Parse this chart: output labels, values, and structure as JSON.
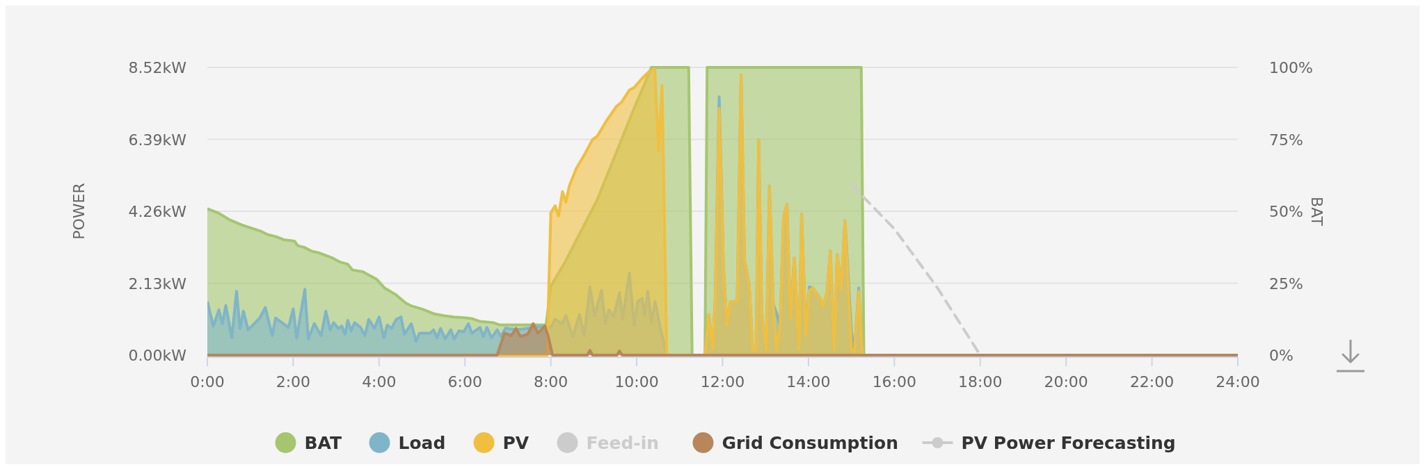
{
  "chart_data": {
    "type": "area",
    "ylabel": "POWER",
    "y2label": "BAT",
    "xlim": [
      0,
      24
    ],
    "xticks": [
      {
        "value": 0,
        "label": "0:00"
      },
      {
        "value": 2,
        "label": "2:00"
      },
      {
        "value": 4,
        "label": "4:00"
      },
      {
        "value": 6,
        "label": "6:00"
      },
      {
        "value": 8,
        "label": "8:00"
      },
      {
        "value": 10,
        "label": "10:00"
      },
      {
        "value": 12,
        "label": "12:00"
      },
      {
        "value": 14,
        "label": "14:00"
      },
      {
        "value": 16,
        "label": "16:00"
      },
      {
        "value": 18,
        "label": "18:00"
      },
      {
        "value": 20,
        "label": "20:00"
      },
      {
        "value": 22,
        "label": "22:00"
      },
      {
        "value": 24,
        "label": "24:00"
      }
    ],
    "ylim": [
      0,
      8.52
    ],
    "yticks": [
      {
        "value": 0,
        "label": "0.00kW"
      },
      {
        "value": 2.13,
        "label": "2.13kW"
      },
      {
        "value": 4.26,
        "label": "4.26kW"
      },
      {
        "value": 6.39,
        "label": "6.39kW"
      },
      {
        "value": 8.52,
        "label": "8.52kW"
      }
    ],
    "y2lim": [
      0,
      100
    ],
    "y2ticks": [
      {
        "value": 0,
        "label": "0%"
      },
      {
        "value": 25,
        "label": "25%"
      },
      {
        "value": 50,
        "label": "50%"
      },
      {
        "value": 75,
        "label": "75%"
      },
      {
        "value": 100,
        "label": "100%"
      }
    ],
    "grid": "y",
    "legend": "bottom",
    "series": [
      {
        "name": "BAT",
        "axis": "y2",
        "color": "#a5c66f",
        "x": [
          0,
          0.27,
          0.51,
          0.81,
          0.97,
          1.24,
          1.4,
          1.59,
          1.78,
          2.03,
          2.11,
          2.27,
          2.43,
          2.59,
          2.92,
          3.08,
          3.27,
          3.38,
          3.62,
          3.94,
          4.13,
          4.38,
          4.62,
          4.75,
          5.02,
          5.29,
          5.51,
          5.75,
          6,
          6.16,
          6.35,
          6.65,
          6.81,
          7.89,
          8,
          8.32,
          8.7,
          9.08,
          9.46,
          9.89,
          10.26,
          10.34,
          11.21,
          11.29,
          11.59,
          11.64,
          15.23,
          15.29
        ],
        "values": [
          50.9,
          49.3,
          47.1,
          45.2,
          44.4,
          43.1,
          41.9,
          41.2,
          40.1,
          39.6,
          38,
          37.4,
          36.1,
          35.6,
          33.7,
          32.4,
          31.6,
          29.6,
          29,
          26.4,
          23.3,
          21.1,
          18.1,
          17.1,
          15.9,
          14.3,
          13.7,
          13.2,
          13,
          12.7,
          11.7,
          11.3,
          10.5,
          10.5,
          24,
          32,
          43,
          54,
          68,
          84,
          97,
          100,
          100,
          0,
          0,
          100,
          100,
          0
        ]
      },
      {
        "name": "Load",
        "color": "#7fb5c8",
        "x": [
          0,
          0.14,
          0.27,
          0.35,
          0.43,
          0.57,
          0.68,
          0.76,
          0.84,
          0.95,
          1.22,
          1.35,
          1.51,
          1.59,
          1.89,
          2,
          2.08,
          2.27,
          2.35,
          2.49,
          2.65,
          2.76,
          2.86,
          2.94,
          3.05,
          3.13,
          3.21,
          3.27,
          3.35,
          3.43,
          3.57,
          3.67,
          3.76,
          3.89,
          4,
          4.11,
          4.19,
          4.29,
          4.4,
          4.51,
          4.59,
          4.75,
          4.86,
          4.94,
          5.19,
          5.27,
          5.35,
          5.43,
          5.54,
          5.67,
          5.75,
          5.86,
          5.97,
          6.08,
          6.16,
          6.35,
          6.43,
          6.51,
          6.62,
          6.75,
          6.83,
          6.95,
          7.2,
          7.5,
          7.8,
          8,
          8.1,
          8.27,
          8.35,
          8.51,
          8.67,
          8.78,
          8.91,
          9.02,
          9.18,
          9.27,
          9.35,
          9.46,
          9.6,
          9.67,
          9.83,
          9.94,
          10.02,
          10.13,
          10.18,
          10.26,
          10.34,
          10.43,
          10.55,
          10.7,
          11.59,
          11.68,
          11.77,
          11.83,
          11.92,
          12.02,
          12.1,
          12.18,
          12.34,
          12.43,
          12.51,
          12.62,
          12.7,
          12.78,
          12.84,
          12.91,
          13.02,
          13.09,
          13.18,
          13.26,
          13.34,
          13.42,
          13.5,
          13.58,
          13.67,
          13.78,
          13.84,
          13.94,
          14.02,
          14.1,
          14.26,
          14.34,
          14.43,
          14.51,
          14.6,
          14.67,
          14.76,
          14.85,
          15,
          15.07,
          15.17,
          15.26,
          24
        ],
        "values": [
          1.58,
          0.86,
          1.34,
          0.93,
          1.47,
          0.51,
          1.89,
          0.79,
          1.3,
          0.75,
          1.1,
          1.41,
          0.58,
          1.1,
          0.82,
          1.37,
          0.51,
          1.95,
          0.48,
          0.93,
          0.58,
          1.3,
          0.75,
          0.96,
          0.79,
          0.86,
          0.62,
          1.03,
          0.72,
          0.96,
          0.82,
          0.58,
          1.06,
          0.79,
          1.13,
          0.51,
          0.89,
          0.79,
          1.06,
          1.13,
          0.62,
          0.93,
          0.41,
          0.65,
          0.65,
          0.75,
          0.51,
          0.79,
          0.48,
          0.75,
          0.48,
          0.72,
          0.69,
          0.93,
          0.65,
          0.82,
          0.55,
          0.82,
          0.51,
          0.75,
          0.55,
          0.8,
          0.75,
          0.8,
          0.85,
          0.82,
          1.06,
          0.93,
          1.17,
          0.55,
          1.2,
          0.58,
          2.02,
          1.17,
          1.92,
          0.93,
          1.34,
          1.13,
          1.85,
          1.06,
          2.43,
          0.89,
          1.58,
          1.68,
          1.17,
          1.89,
          0.96,
          1.58,
          0.8,
          0,
          0,
          1.2,
          0.17,
          1.71,
          7.65,
          2.61,
          0.89,
          1.58,
          1.58,
          8.3,
          2.81,
          2.06,
          0.14,
          0.14,
          6.38,
          1.3,
          0.14,
          5.01,
          1.51,
          1.23,
          0.89,
          4.08,
          4.46,
          1.06,
          2.88,
          0.17,
          4.18,
          0.58,
          2.02,
          1.99,
          1.71,
          1.44,
          1.85,
          3.09,
          0.14,
          2.98,
          1.95,
          3.98,
          0.69,
          0.1,
          1.99,
          0,
          0
        ]
      },
      {
        "name": "PV",
        "color": "#f0bf40",
        "x": [
          0,
          7.91,
          8,
          8.1,
          8.18,
          8.27,
          8.35,
          8.43,
          8.59,
          8.78,
          8.97,
          9.08,
          9.29,
          9.53,
          9.64,
          9.83,
          9.94,
          10.13,
          10.29,
          10.4,
          10.42,
          10.51,
          10.59,
          10.7,
          11.59,
          11.68,
          11.77,
          11.83,
          11.92,
          12.02,
          12.1,
          12.18,
          12.34,
          12.43,
          12.51,
          12.62,
          12.7,
          12.78,
          12.84,
          12.91,
          13.02,
          13.09,
          13.18,
          13.26,
          13.34,
          13.42,
          13.5,
          13.58,
          13.67,
          13.78,
          13.84,
          13.94,
          14.02,
          14.1,
          14.26,
          14.34,
          14.43,
          14.51,
          14.6,
          14.67,
          14.76,
          14.85,
          15,
          15.07,
          15.17,
          15.26,
          24
        ],
        "values": [
          0,
          0,
          4.22,
          4.42,
          4.12,
          4.84,
          4.53,
          5.01,
          5.52,
          5.93,
          6.38,
          6.48,
          6.93,
          7.37,
          7.48,
          7.85,
          7.92,
          8.2,
          8.4,
          8.47,
          8.47,
          6.04,
          7.99,
          0,
          0,
          1.2,
          0.17,
          1.71,
          7.3,
          2.61,
          0.89,
          1.58,
          1.58,
          8.3,
          2.81,
          2.06,
          0.14,
          0.14,
          6.38,
          1.3,
          0.14,
          5.01,
          1.51,
          0.14,
          0.89,
          4.08,
          4.46,
          1.06,
          2.88,
          0.17,
          4.18,
          0.58,
          1.92,
          1.99,
          1.71,
          1.44,
          1.85,
          3.09,
          0.14,
          2.98,
          1.95,
          3.98,
          0.17,
          0.1,
          1.89,
          0,
          0
        ]
      },
      {
        "name": "Feed-in",
        "color": "#cccccc"
      },
      {
        "name": "Grid Consumption",
        "color": "#b8865a",
        "x": [
          0,
          6.75,
          6.92,
          7.08,
          7.19,
          7.29,
          7.46,
          7.59,
          7.7,
          7.86,
          7.94,
          8.04,
          8.85,
          8.91,
          8.97,
          9.54,
          9.6,
          9.66,
          24
        ],
        "values": [
          0,
          0,
          0.65,
          0.58,
          0.79,
          0.55,
          0.62,
          0.93,
          0.65,
          0.86,
          0.55,
          0,
          0,
          0.14,
          0,
          0,
          0.12,
          0,
          0
        ]
      },
      {
        "name": "PV Power Forecasting",
        "type": "line",
        "line_style": "dashed",
        "color": "#cccccc",
        "x": [
          15,
          16,
          17,
          18
        ],
        "values": [
          5.05,
          3.74,
          2,
          0
        ]
      }
    ]
  }
}
